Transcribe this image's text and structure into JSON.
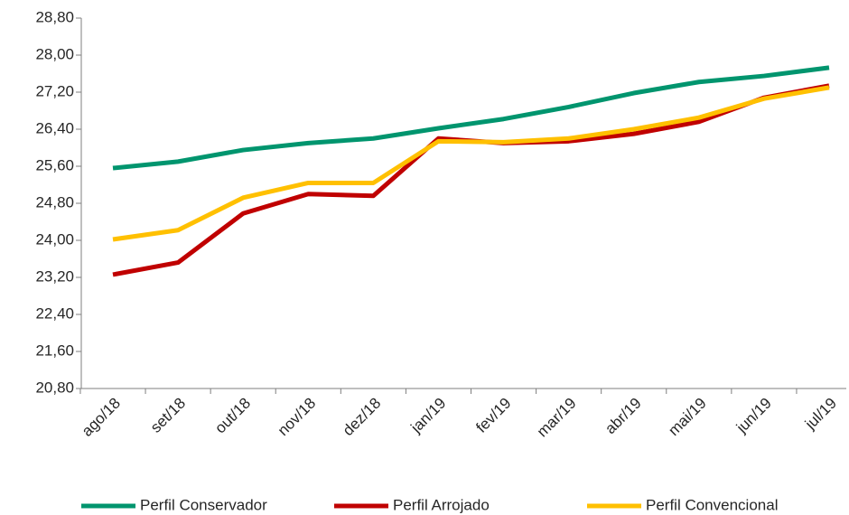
{
  "chart_data": {
    "type": "line",
    "categories": [
      "ago/18",
      "set/18",
      "out/18",
      "nov/18",
      "dez/18",
      "jan/19",
      "fev/19",
      "mar/19",
      "abr/19",
      "mai/19",
      "jun/19",
      "jul/19"
    ],
    "series": [
      {
        "name": "Perfil Conservador",
        "color": "#00956e",
        "values": [
          25.56,
          25.7,
          25.95,
          26.1,
          26.2,
          26.42,
          26.62,
          26.88,
          27.18,
          27.42,
          27.55,
          27.73
        ]
      },
      {
        "name": "Perfil Arrojado",
        "color": "#c00000",
        "values": [
          23.26,
          23.52,
          24.58,
          25.0,
          24.96,
          26.2,
          26.1,
          26.14,
          26.3,
          26.56,
          27.08,
          27.34
        ]
      },
      {
        "name": "Perfil Convencional",
        "color": "#ffc000",
        "values": [
          24.02,
          24.22,
          24.92,
          25.24,
          25.24,
          26.14,
          26.12,
          26.2,
          26.4,
          26.65,
          27.06,
          27.3
        ]
      }
    ],
    "ylim": [
      20.8,
      28.8
    ],
    "yticks": [
      {
        "value": 20.8,
        "label": "20,80"
      },
      {
        "value": 21.6,
        "label": "21,60"
      },
      {
        "value": 22.4,
        "label": "22,40"
      },
      {
        "value": 23.2,
        "label": "23,20"
      },
      {
        "value": 24.0,
        "label": "24,00"
      },
      {
        "value": 24.8,
        "label": "24,80"
      },
      {
        "value": 25.6,
        "label": "25,60"
      },
      {
        "value": 26.4,
        "label": "26,40"
      },
      {
        "value": 27.2,
        "label": "27,20"
      },
      {
        "value": 28.0,
        "label": "28,00"
      },
      {
        "value": 28.8,
        "label": "28,80"
      }
    ],
    "grid": false,
    "legend": "bottom"
  }
}
